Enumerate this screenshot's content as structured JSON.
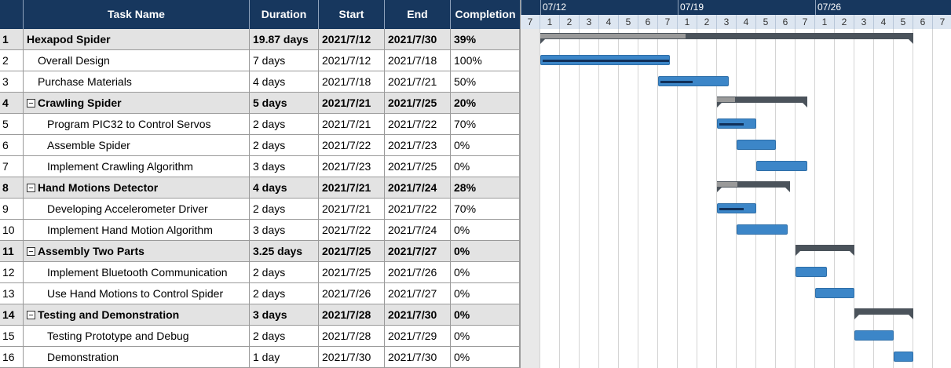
{
  "table": {
    "headers": {
      "num": "",
      "name": "Task Name",
      "duration": "Duration",
      "start": "Start",
      "end": "End",
      "completion": "Completion"
    },
    "rows": [
      {
        "num": "1",
        "name": "Hexapod Spider",
        "duration": "19.87 days",
        "start": "2021/7/12",
        "end": "2021/7/30",
        "completion": "39%",
        "summary": true,
        "collapsible": false,
        "level": 0
      },
      {
        "num": "2",
        "name": "Overall Design",
        "duration": "7 days",
        "start": "2021/7/12",
        "end": "2021/7/18",
        "completion": "100%",
        "summary": false,
        "level": 1
      },
      {
        "num": "3",
        "name": "Purchase Materials",
        "duration": "4 days",
        "start": "2021/7/18",
        "end": "2021/7/21",
        "completion": "50%",
        "summary": false,
        "level": 1
      },
      {
        "num": "4",
        "name": "Crawling Spider",
        "duration": "5 days",
        "start": "2021/7/21",
        "end": "2021/7/25",
        "completion": "20%",
        "summary": true,
        "collapsible": true,
        "level": 1
      },
      {
        "num": "5",
        "name": "Program PIC32 to Control Servos",
        "duration": "2 days",
        "start": "2021/7/21",
        "end": "2021/7/22",
        "completion": "70%",
        "summary": false,
        "level": 2
      },
      {
        "num": "6",
        "name": "Assemble Spider",
        "duration": "2 days",
        "start": "2021/7/22",
        "end": "2021/7/23",
        "completion": "0%",
        "summary": false,
        "level": 2
      },
      {
        "num": "7",
        "name": "Implement Crawling Algorithm",
        "duration": "3 days",
        "start": "2021/7/23",
        "end": "2021/7/25",
        "completion": "0%",
        "summary": false,
        "level": 2
      },
      {
        "num": "8",
        "name": "Hand Motions Detector",
        "duration": "4 days",
        "start": "2021/7/21",
        "end": "2021/7/24",
        "completion": "28%",
        "summary": true,
        "collapsible": true,
        "level": 1
      },
      {
        "num": "9",
        "name": "Developing Accelerometer Driver",
        "duration": "2 days",
        "start": "2021/7/21",
        "end": "2021/7/22",
        "completion": "70%",
        "summary": false,
        "level": 2
      },
      {
        "num": "10",
        "name": "Implement Hand Motion Algorithm",
        "duration": "3 days",
        "start": "2021/7/22",
        "end": "2021/7/24",
        "completion": "0%",
        "summary": false,
        "level": 2
      },
      {
        "num": "11",
        "name": "Assembly Two Parts",
        "duration": "3.25 days",
        "start": "2021/7/25",
        "end": "2021/7/27",
        "completion": "0%",
        "summary": true,
        "collapsible": true,
        "level": 1
      },
      {
        "num": "12",
        "name": "Implement Bluetooth Communication",
        "duration": "2 days",
        "start": "2021/7/25",
        "end": "2021/7/26",
        "completion": "0%",
        "summary": false,
        "level": 2
      },
      {
        "num": "13",
        "name": "Use Hand Motions to Control Spider",
        "duration": "2 days",
        "start": "2021/7/26",
        "end": "2021/7/27",
        "completion": "0%",
        "summary": false,
        "level": 2
      },
      {
        "num": "14",
        "name": "Testing and Demonstration",
        "duration": "3 days",
        "start": "2021/7/28",
        "end": "2021/7/30",
        "completion": "0%",
        "summary": true,
        "collapsible": true,
        "level": 1
      },
      {
        "num": "15",
        "name": "Testing Prototype and Debug",
        "duration": "2 days",
        "start": "2021/7/28",
        "end": "2021/7/29",
        "completion": "0%",
        "summary": false,
        "level": 2
      },
      {
        "num": "16",
        "name": "Demonstration",
        "duration": "1 day",
        "start": "2021/7/30",
        "end": "2021/7/30",
        "completion": "0%",
        "summary": false,
        "level": 2
      }
    ]
  },
  "gantt": {
    "weeks": [
      "07/12",
      "07/19",
      "07/26"
    ],
    "day_labels": [
      "7",
      "1",
      "2",
      "3",
      "4",
      "5",
      "6",
      "7",
      "1",
      "2",
      "3",
      "4",
      "5",
      "6",
      "7",
      "1",
      "2",
      "3",
      "4",
      "5",
      "6",
      "7"
    ],
    "colors": {
      "header": "#17375e",
      "task_bar": "#3c86c8",
      "summary_bar": "#4b535b",
      "progress": "#10305a"
    },
    "bars": [
      {
        "start_day": 1,
        "span_days": 19,
        "progress": 0.39,
        "summary": true
      },
      {
        "start_day": 1,
        "span_days": 6.6,
        "progress": 1.0,
        "summary": false
      },
      {
        "start_day": 7,
        "span_days": 3.6,
        "progress": 0.5,
        "summary": false
      },
      {
        "start_day": 10,
        "span_days": 4.6,
        "progress": 0.2,
        "summary": true
      },
      {
        "start_day": 10,
        "span_days": 2,
        "progress": 0.7,
        "summary": false
      },
      {
        "start_day": 11,
        "span_days": 2,
        "progress": 0,
        "summary": false
      },
      {
        "start_day": 12,
        "span_days": 2.6,
        "progress": 0,
        "summary": false
      },
      {
        "start_day": 10,
        "span_days": 3.7,
        "progress": 0.28,
        "summary": true
      },
      {
        "start_day": 10,
        "span_days": 2,
        "progress": 0.7,
        "summary": false
      },
      {
        "start_day": 11,
        "span_days": 2.6,
        "progress": 0,
        "summary": false
      },
      {
        "start_day": 14,
        "span_days": 3,
        "progress": 0,
        "summary": true
      },
      {
        "start_day": 14,
        "span_days": 1.6,
        "progress": 0,
        "summary": false
      },
      {
        "start_day": 15,
        "span_days": 2,
        "progress": 0,
        "summary": false
      },
      {
        "start_day": 17,
        "span_days": 3,
        "progress": 0,
        "summary": true
      },
      {
        "start_day": 17,
        "span_days": 2,
        "progress": 0,
        "summary": false
      },
      {
        "start_day": 19,
        "span_days": 1,
        "progress": 0,
        "summary": false
      }
    ]
  }
}
